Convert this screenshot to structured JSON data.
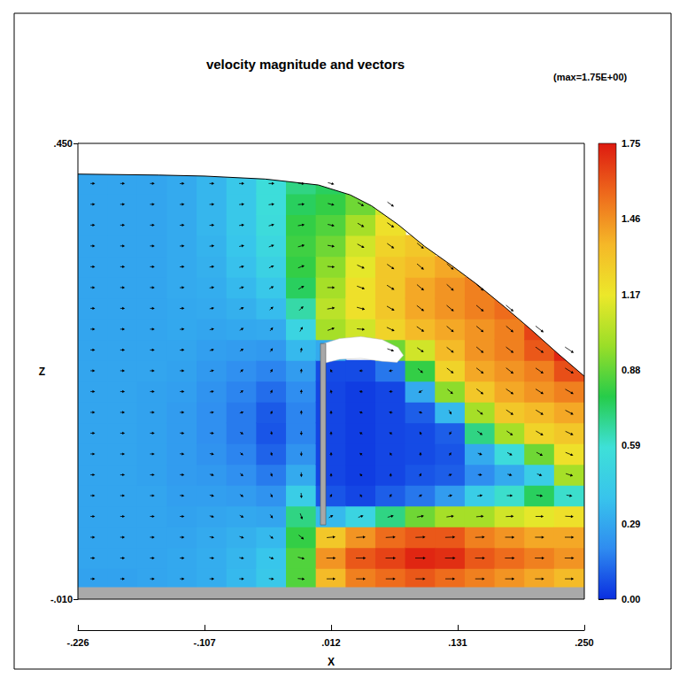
{
  "chart_data": {
    "type": "contour_vector",
    "title": "velocity magnitude and vectors",
    "subtitle": "(max=1.75E+00)",
    "x_label": "X",
    "y_label": "Z",
    "xlim": [
      -0.226,
      0.25
    ],
    "xticks": [
      {
        "value": -0.226,
        "label": "-.226"
      },
      {
        "value": -0.107,
        "label": "-.107"
      },
      {
        "value": 0.012,
        "label": ".012"
      },
      {
        "value": 0.131,
        "label": ".131"
      },
      {
        "value": 0.25,
        "label": ".250"
      }
    ],
    "ylim": [
      -0.01,
      0.45
    ],
    "yticks": [
      {
        "value": -0.01,
        "label": "-.010"
      },
      {
        "value": 0.45,
        "label": ".450"
      }
    ],
    "field": {
      "x": [
        -0.212,
        -0.184,
        -0.156,
        -0.128,
        -0.1,
        -0.072,
        -0.044,
        -0.016,
        0.012,
        0.04,
        0.068,
        0.096,
        0.124,
        0.152,
        0.18,
        0.208,
        0.236
      ],
      "z": [
        0.0105,
        0.0315,
        0.0525,
        0.0735,
        0.0945,
        0.1155,
        0.1365,
        0.1575,
        0.1785,
        0.1995,
        0.2205,
        0.2415,
        0.2625,
        0.2835,
        0.3045,
        0.3255,
        0.3465,
        0.3675,
        0.3885,
        0.4095
      ],
      "values": [
        [
          0.27,
          0.28,
          0.28,
          0.28,
          0.28,
          0.28,
          0.28,
          0.28,
          0.28,
          0.28,
          0.28,
          0.28,
          0.28,
          0.28,
          0.28,
          0.28,
          0.28,
          0.28,
          0.28,
          0.28
        ],
        [
          0.27,
          0.28,
          0.28,
          0.28,
          0.28,
          0.28,
          0.28,
          0.28,
          0.28,
          0.28,
          0.28,
          0.28,
          0.28,
          0.28,
          0.28,
          0.28,
          0.28,
          0.28,
          0.28,
          0.28
        ],
        [
          0.28,
          0.28,
          0.28,
          0.28,
          0.28,
          0.27,
          0.27,
          0.27,
          0.27,
          0.27,
          0.28,
          0.28,
          0.28,
          0.28,
          0.28,
          0.28,
          0.28,
          0.28,
          0.28,
          0.28
        ],
        [
          0.29,
          0.29,
          0.28,
          0.27,
          0.26,
          0.25,
          0.25,
          0.25,
          0.25,
          0.26,
          0.27,
          0.28,
          0.29,
          0.29,
          0.3,
          0.3,
          0.3,
          0.3,
          0.3,
          0.3
        ],
        [
          0.31,
          0.31,
          0.3,
          0.28,
          0.26,
          0.24,
          0.22,
          0.21,
          0.21,
          0.22,
          0.24,
          0.26,
          0.28,
          0.3,
          0.31,
          0.32,
          0.33,
          0.34,
          0.34,
          0.34
        ],
        [
          0.35,
          0.34,
          0.32,
          0.29,
          0.25,
          0.21,
          0.18,
          0.16,
          0.16,
          0.18,
          0.21,
          0.25,
          0.29,
          0.32,
          0.35,
          0.38,
          0.4,
          0.42,
          0.42,
          0.42
        ],
        [
          0.42,
          0.4,
          0.35,
          0.28,
          0.22,
          0.16,
          0.11,
          0.08,
          0.09,
          0.13,
          0.18,
          0.24,
          0.3,
          0.36,
          0.42,
          0.48,
          0.52,
          0.55,
          0.56,
          0.56
        ],
        [
          0.85,
          0.85,
          0.8,
          0.7,
          0.45,
          0.3,
          0.22,
          0.18,
          0.18,
          0.2,
          0.25,
          0.35,
          0.5,
          0.65,
          0.75,
          0.8,
          0.82,
          0.8,
          0.75,
          0.7
        ],
        [
          1.35,
          1.45,
          1.3,
          0.35,
          0.08,
          0.05,
          0.05,
          0.05,
          0.05,
          0.05,
          0.06,
          0.3,
          1.0,
          1.05,
          1.0,
          0.95,
          0.9,
          0.85,
          0.8,
          0.75
        ],
        [
          1.5,
          1.6,
          1.45,
          0.5,
          0.05,
          0.03,
          0.03,
          0.03,
          0.03,
          0.03,
          0.06,
          null,
          1.1,
          1.2,
          1.2,
          1.15,
          1.1,
          1.0,
          0.9,
          null
        ],
        [
          1.55,
          1.65,
          1.55,
          0.7,
          0.1,
          0.05,
          0.05,
          0.05,
          0.05,
          0.05,
          0.15,
          0.9,
          1.25,
          1.3,
          1.3,
          1.3,
          1.25,
          1.2,
          1.1,
          null
        ],
        [
          1.6,
          1.72,
          1.6,
          0.9,
          0.15,
          0.08,
          0.06,
          0.06,
          0.1,
          0.3,
          0.8,
          1.1,
          1.35,
          1.4,
          1.4,
          1.35,
          1.3,
          null,
          null,
          null
        ],
        [
          1.55,
          1.7,
          1.6,
          1.0,
          0.25,
          0.1,
          0.08,
          0.1,
          0.35,
          0.95,
          1.25,
          1.35,
          1.4,
          1.45,
          1.45,
          1.4,
          null,
          null,
          null,
          null
        ],
        [
          1.5,
          1.6,
          1.5,
          1.0,
          0.45,
          0.2,
          0.3,
          0.7,
          1.0,
          1.3,
          1.4,
          1.45,
          1.45,
          1.5,
          1.5,
          null,
          null,
          null,
          null,
          null
        ],
        [
          1.45,
          1.55,
          1.45,
          1.1,
          0.6,
          0.3,
          0.55,
          1.0,
          1.3,
          1.4,
          1.45,
          1.5,
          1.5,
          1.55,
          null,
          null,
          null,
          null,
          null,
          null
        ],
        [
          1.4,
          1.5,
          1.4,
          1.15,
          0.75,
          0.45,
          0.9,
          1.25,
          1.35,
          1.45,
          1.5,
          1.6,
          1.65,
          null,
          null,
          null,
          null,
          null,
          null,
          null
        ],
        [
          1.35,
          1.45,
          1.4,
          1.2,
          0.6,
          1.0,
          1.2,
          1.3,
          1.4,
          1.5,
          1.62,
          1.72,
          null,
          null,
          null,
          null,
          null,
          null,
          null,
          null
        ]
      ]
    },
    "vectors": {
      "angle": [
        [
          0,
          0,
          0,
          0,
          0,
          0,
          0,
          0,
          0,
          0,
          0,
          0,
          0,
          0,
          0,
          0,
          0,
          0,
          0,
          0
        ],
        [
          0,
          0,
          0,
          0,
          0,
          0,
          0,
          0,
          0,
          0,
          0,
          0,
          0,
          0,
          0,
          0,
          0,
          0,
          0,
          0
        ],
        [
          0,
          0,
          0,
          0,
          0,
          0,
          0,
          0,
          0,
          0,
          0,
          0,
          0,
          0,
          0,
          0,
          0,
          0,
          0,
          0
        ],
        [
          0,
          0,
          0,
          0,
          -5,
          -5,
          -5,
          -5,
          0,
          0,
          0,
          5,
          5,
          5,
          5,
          5,
          3,
          3,
          3,
          3
        ],
        [
          0,
          -5,
          -10,
          -15,
          -15,
          -15,
          -10,
          -5,
          5,
          10,
          15,
          15,
          15,
          12,
          10,
          8,
          6,
          4,
          2,
          0
        ],
        [
          0,
          -10,
          -20,
          -30,
          -35,
          -40,
          -40,
          -30,
          20,
          35,
          40,
          35,
          30,
          25,
          20,
          15,
          12,
          8,
          5,
          0
        ],
        [
          -5,
          -20,
          -40,
          -55,
          -65,
          -70,
          -75,
          -80,
          70,
          65,
          60,
          55,
          50,
          40,
          30,
          25,
          20,
          15,
          8,
          0
        ],
        [
          -5,
          -15,
          -40,
          -70,
          -85,
          -88,
          -90,
          -90,
          90,
          88,
          85,
          80,
          60,
          45,
          30,
          20,
          15,
          10,
          5,
          -5
        ],
        [
          0,
          0,
          5,
          30,
          60,
          90,
          90,
          90,
          90,
          100,
          120,
          null,
          20,
          10,
          0,
          -5,
          -10,
          -12,
          -15,
          -15
        ],
        [
          0,
          0,
          3,
          20,
          120,
          130,
          140,
          150,
          160,
          170,
          180,
          null,
          -5,
          -15,
          -20,
          -25,
          -28,
          -30,
          -30,
          null
        ],
        [
          0,
          0,
          3,
          15,
          60,
          90,
          120,
          150,
          170,
          180,
          -170,
          -20,
          -25,
          -30,
          -32,
          -35,
          -35,
          -35,
          -35,
          null
        ],
        [
          0,
          0,
          2,
          10,
          30,
          60,
          90,
          120,
          160,
          -150,
          -40,
          -35,
          -35,
          -38,
          -40,
          -40,
          -40,
          null,
          null,
          null
        ],
        [
          0,
          0,
          2,
          8,
          15,
          20,
          60,
          -120,
          -60,
          -40,
          -38,
          -38,
          -40,
          -40,
          -42,
          -42,
          null,
          null,
          null,
          null
        ],
        [
          0,
          0,
          2,
          5,
          8,
          -5,
          -20,
          -35,
          -38,
          -38,
          -38,
          -40,
          -40,
          -40,
          -42,
          null,
          null,
          null,
          null,
          null
        ],
        [
          0,
          0,
          0,
          2,
          0,
          -15,
          -30,
          -35,
          -35,
          -35,
          -38,
          -38,
          -40,
          -40,
          null,
          null,
          null,
          null,
          null,
          null
        ],
        [
          0,
          0,
          0,
          0,
          -8,
          -20,
          -28,
          -30,
          -32,
          -33,
          -35,
          -36,
          -38,
          null,
          null,
          null,
          null,
          null,
          null,
          null
        ],
        [
          0,
          0,
          0,
          -3,
          -10,
          -18,
          -22,
          -25,
          -28,
          -30,
          -32,
          -34,
          null,
          null,
          null,
          null,
          null,
          null,
          null,
          null
        ]
      ]
    },
    "free_surface": {
      "x": [
        -0.226,
        -0.15,
        -0.107,
        -0.05,
        0.0,
        0.03,
        0.05,
        0.075,
        0.1,
        0.125,
        0.15,
        0.175,
        0.2,
        0.225,
        0.25
      ],
      "z": [
        0.419,
        0.418,
        0.417,
        0.414,
        0.408,
        0.398,
        0.387,
        0.368,
        0.346,
        0.327,
        0.307,
        0.285,
        0.262,
        0.238,
        0.215
      ]
    },
    "air_pocket": {
      "x": [
        0.005,
        0.02,
        0.04,
        0.06,
        0.075,
        0.08,
        0.074,
        0.06,
        0.04,
        0.02,
        0.005
      ],
      "z": [
        0.248,
        0.253,
        0.255,
        0.252,
        0.244,
        0.236,
        0.229,
        0.23,
        0.233,
        0.232,
        0.228
      ]
    },
    "gate": {
      "x": [
        0.002,
        0.007
      ],
      "z": [
        0.065,
        0.248
      ]
    },
    "floor": {
      "z": [
        -0.01,
        0.002
      ]
    },
    "colorbar": {
      "range": [
        0,
        1.75
      ],
      "ticks": [
        {
          "value": 0,
          "label": "0.00"
        },
        0.29,
        0.59,
        0.88,
        1.17,
        1.46,
        1.75
      ],
      "colors": [
        "#0a2ee0",
        "#2f8cf0",
        "#38c4ec",
        "#3ee0d8",
        "#26cc4a",
        "#9ade28",
        "#ece82a",
        "#f5b828",
        "#ee6a1c",
        "#dd1a10"
      ]
    }
  }
}
